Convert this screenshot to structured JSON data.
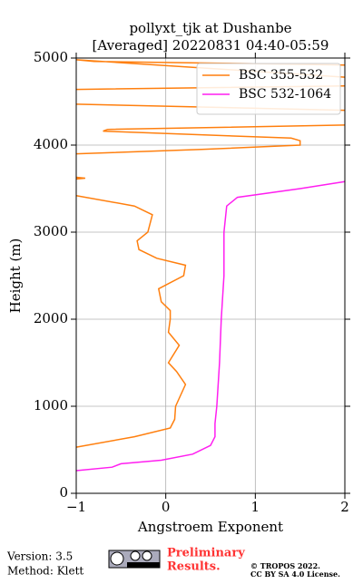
{
  "chart_data": {
    "type": "line",
    "title": [
      "pollyxt_tjk at Dushanbe",
      "[Averaged] 20220831 04:40-05:59"
    ],
    "xlabel": "Angstroem Exponent",
    "ylabel": "Height (m)",
    "xlim": [
      -1,
      2
    ],
    "ylim": [
      0,
      5000
    ],
    "xticks": [
      {
        "value": -1,
        "label": "−1"
      },
      0,
      1,
      2
    ],
    "yticks": [
      0,
      1000,
      2000,
      3000,
      4000,
      5000
    ],
    "grid": true,
    "legend": "upper right",
    "series": [
      {
        "name": "BSC 355-532",
        "color": "#ff7f0e",
        "x": [
          -1,
          -0.35,
          0.05,
          0.1,
          0.11,
          0.22,
          0.12,
          0.03,
          0.15,
          0.03,
          0.05,
          0.05,
          -0.05,
          -0.08,
          0.2,
          0.22,
          -0.1,
          -0.3,
          -0.32,
          -0.2,
          -0.15,
          -0.35,
          -1,
          null,
          -1,
          -0.9,
          -1,
          null,
          -1,
          0.4,
          1.5,
          1.5,
          1.4,
          -0.7,
          -0.65,
          2,
          null,
          2,
          -1,
          null,
          -1,
          2,
          null,
          2,
          -1,
          -0.8,
          2
        ],
        "y": [
          530,
          650,
          750,
          850,
          1000,
          1250,
          1400,
          1500,
          1700,
          1850,
          2000,
          2100,
          2200,
          2350,
          2500,
          2620,
          2700,
          2800,
          2900,
          3000,
          3200,
          3300,
          3420,
          null,
          3630,
          3620,
          3610,
          null,
          3900,
          3950,
          4000,
          4050,
          4080,
          4160,
          4180,
          4230,
          null,
          4400,
          4470,
          null,
          4640,
          4680,
          null,
          4780,
          4980,
          4960,
          4920
        ]
      },
      {
        "name": "BSC 532-1064",
        "color": "#ff1ef0",
        "x": [
          -1,
          -0.6,
          -0.5,
          -0.05,
          0.3,
          0.5,
          0.55,
          0.55,
          0.57,
          0.6,
          0.62,
          0.65,
          0.65,
          0.68,
          0.8,
          1.5,
          2
        ],
        "y": [
          260,
          300,
          340,
          380,
          450,
          550,
          650,
          800,
          1000,
          1500,
          2000,
          2500,
          3000,
          3300,
          3400,
          3500,
          3580
        ]
      }
    ]
  },
  "footer": {
    "version": "Version: 3.5",
    "method": "Method: Klett",
    "status": [
      "Preliminary",
      "Results."
    ],
    "copyright": [
      "© TROPOS 2022.",
      "CC BY SA 4.0 License."
    ]
  }
}
